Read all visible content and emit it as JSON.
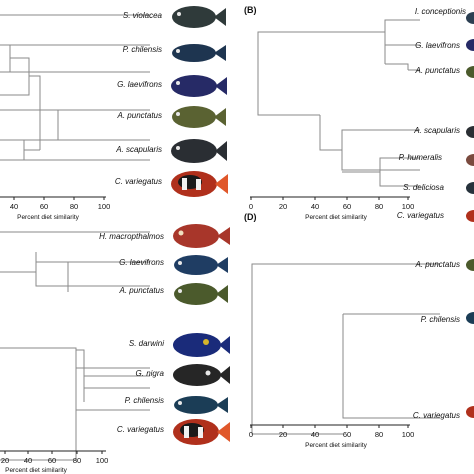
{
  "panels": [
    {
      "id": "A",
      "label": "",
      "axis_label": "Percent diet similarity",
      "ticks": [
        "40",
        "60",
        "80",
        "100"
      ],
      "species": [
        "S. violacea",
        "P. chilensis",
        "G. laevifrons",
        "A. punctatus",
        "A. scapularis",
        "C. variegatus"
      ],
      "fish_colors": [
        "#2f3a3a",
        "#1e3550",
        "#262a66",
        "#5a6232",
        "#2a2e33",
        "#b0301c"
      ]
    },
    {
      "id": "B",
      "label": "(B)",
      "axis_label": "Percent diet similarity",
      "ticks": [
        "0",
        "20",
        "40",
        "60",
        "80",
        "100"
      ],
      "species": [
        "I. conceptionis",
        "G. laevifrons",
        "A. punctatus",
        "A. scapularis",
        "P. humeralis",
        "S. deliciosa",
        "C. variegatus"
      ]
    },
    {
      "id": "C",
      "label": "",
      "axis_label": "Percent diet similarity",
      "ticks": [
        "20",
        "40",
        "60",
        "80",
        "100"
      ],
      "species": [
        "H. macropthalmos",
        "G. laevifrons",
        "A. punctatus",
        "S. darwini",
        "G. nigra",
        "P. chilensis",
        "C. variegatus"
      ],
      "fish_colors": [
        "#a8362a",
        "#1f3d63",
        "#4b5a2c",
        "#1a2b7a",
        "#262626",
        "#1b3d56",
        "#b0301c"
      ]
    },
    {
      "id": "D",
      "label": "(D)",
      "axis_label": "Percent diet similarity",
      "ticks": [
        "0",
        "20",
        "40",
        "60",
        "80",
        "100"
      ],
      "species": [
        "A. punctatus",
        "P. chilensis",
        "C. variegatus"
      ]
    }
  ]
}
